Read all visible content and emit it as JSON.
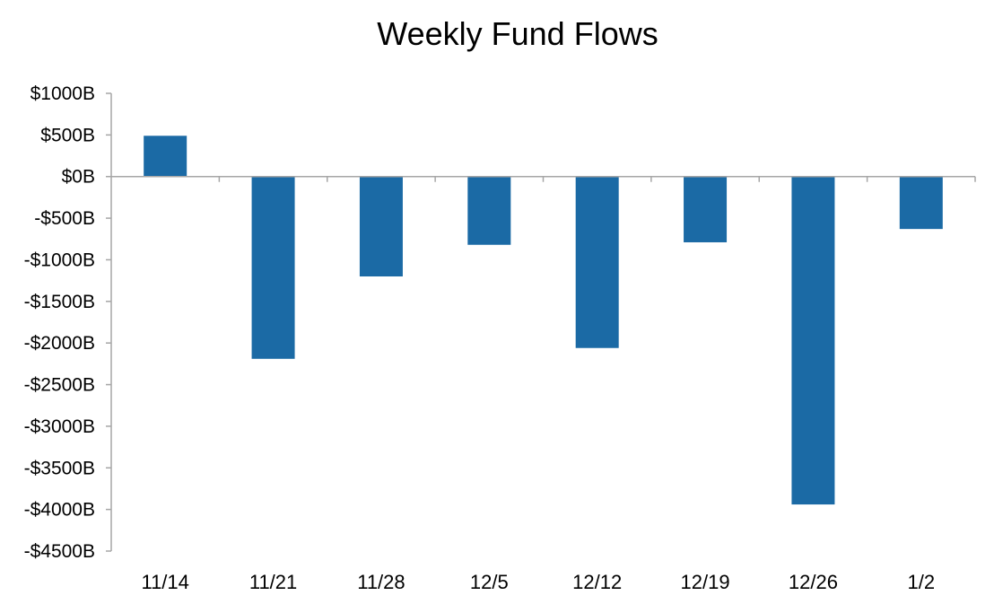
{
  "chart_data": {
    "type": "bar",
    "title": "Weekly Fund Flows",
    "xlabel": "",
    "ylabel": "",
    "categories": [
      "11/14",
      "11/21",
      "11/28",
      "12/5",
      "12/12",
      "12/19",
      "12/26",
      "1/2"
    ],
    "values": [
      490,
      -2190,
      -1200,
      -820,
      -2060,
      -790,
      -3940,
      -630
    ],
    "ylim": [
      -4500,
      1000
    ],
    "yticks": [
      1000,
      500,
      0,
      -500,
      -1000,
      -1500,
      -2000,
      -2500,
      -3000,
      -3500,
      -4000,
      -4500
    ],
    "ytick_labels": [
      "$1000B",
      "$500B",
      "$0B",
      "-$500B",
      "-$1000B",
      "-$1500B",
      "-$2000B",
      "-$2500B",
      "-$3000B",
      "-$3500B",
      "-$4000B",
      "-$4500B"
    ],
    "bar_color": "#1b6aa5",
    "axis_color": "#a6a6a6",
    "grid": false,
    "legend": "none"
  }
}
